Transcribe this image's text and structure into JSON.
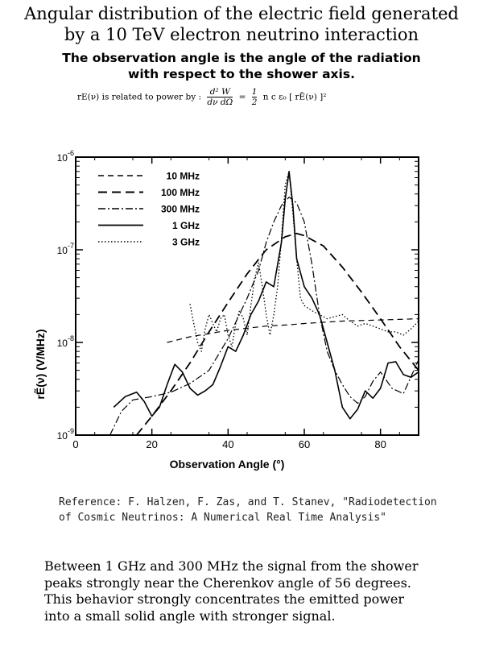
{
  "header": {
    "title_line1": "Angular distribution of the electric field generated",
    "title_line2": "by a 10 TeV electron neutrino interaction",
    "subtitle_line1": "The observation angle is the angle of the radiation",
    "subtitle_line2": "with respect to the shower axis."
  },
  "formula": {
    "lead": "rE(ν) is related to power by :",
    "numerator": "d² W",
    "denominator": "dν  dΩ",
    "equals": "=",
    "half_num": "1",
    "half_den": "2",
    "rhs": "n c ε₀ [ rĒ(ν) ]²"
  },
  "chart_data": {
    "type": "line",
    "xlabel": "Observation Angle  (°)",
    "ylabel": "rẼ(ν)   (V/MHz)",
    "xlim": [
      0,
      90
    ],
    "ylim": [
      1e-09,
      1e-06
    ],
    "yscale": "log",
    "grid": false,
    "legend_position": "top-left",
    "x_ticks": [
      {
        "value": 0,
        "label": "0"
      },
      {
        "value": 20,
        "label": "20"
      },
      {
        "value": 40,
        "label": "40"
      },
      {
        "value": 60,
        "label": "60"
      },
      {
        "value": 80,
        "label": "80"
      }
    ],
    "y_ticks": [
      {
        "value": 1e-09,
        "base": "10",
        "exp": "-9"
      },
      {
        "value": 1e-08,
        "base": "10",
        "exp": "-8"
      },
      {
        "value": 1e-07,
        "base": "10",
        "exp": "-7"
      },
      {
        "value": 1e-06,
        "base": "10",
        "exp": "-6"
      }
    ],
    "series": [
      {
        "name": "10 MHz",
        "dash": "7,5",
        "width": 1.2,
        "x": [
          24,
          30,
          40,
          50,
          56,
          60,
          70,
          80,
          90
        ],
        "y": [
          1e-08,
          1.15e-08,
          1.35e-08,
          1.5e-08,
          1.55e-08,
          1.6e-08,
          1.7e-08,
          1.75e-08,
          1.8e-08
        ]
      },
      {
        "name": "100 MHz",
        "dash": "11,6",
        "width": 1.8,
        "x": [
          16,
          20,
          25,
          30,
          35,
          40,
          45,
          50,
          55,
          58,
          60,
          65,
          70,
          75,
          80,
          85,
          90
        ],
        "y": [
          1e-09,
          1.6e-09,
          3e-09,
          6e-09,
          1.3e-08,
          2.7e-08,
          5.5e-08,
          1e-07,
          1.38e-07,
          1.5e-07,
          1.42e-07,
          1.1e-07,
          6.5e-08,
          3.5e-08,
          1.8e-08,
          9e-09,
          5e-09
        ]
      },
      {
        "name": "300 MHz",
        "dash": "9,3,2,3",
        "width": 1.2,
        "x": [
          9,
          12,
          15,
          20,
          25,
          30,
          35,
          40,
          45,
          48,
          50,
          52,
          54,
          56,
          58,
          60,
          62,
          64,
          66,
          68,
          70,
          72,
          74,
          76,
          78,
          80,
          83,
          86,
          90
        ],
        "y": [
          1e-09,
          1.8e-09,
          2.4e-09,
          2.6e-09,
          2.9e-09,
          3.6e-09,
          5e-09,
          1.1e-08,
          3e-08,
          6e-08,
          1.2e-07,
          2e-07,
          3e-07,
          3.7e-07,
          3.2e-07,
          2e-07,
          7e-08,
          2e-08,
          8e-09,
          5e-09,
          3.5e-09,
          2.6e-09,
          2.2e-09,
          2.6e-09,
          3.8e-09,
          4.8e-09,
          3.2e-09,
          2.8e-09,
          6.5e-09
        ]
      },
      {
        "name": "1 GHz",
        "dash": "",
        "width": 1.6,
        "x": [
          10,
          13,
          16,
          18,
          20,
          22,
          24,
          26,
          28,
          30,
          32,
          34,
          36,
          38,
          40,
          42,
          44,
          46,
          48,
          50,
          52,
          54,
          55,
          56,
          57,
          58,
          60,
          62,
          64,
          66,
          68,
          70,
          72,
          74,
          76,
          78,
          80,
          82,
          84,
          86,
          88,
          90
        ],
        "y": [
          2e-09,
          2.6e-09,
          2.9e-09,
          2.3e-09,
          1.6e-09,
          2e-09,
          3.5e-09,
          5.8e-09,
          4.8e-09,
          3.2e-09,
          2.7e-09,
          3e-09,
          3.5e-09,
          5.5e-09,
          9e-09,
          8e-09,
          1.2e-08,
          2e-08,
          2.8e-08,
          4.5e-08,
          4e-08,
          1.2e-07,
          3.5e-07,
          7e-07,
          3e-07,
          8e-08,
          4e-08,
          3e-08,
          2e-08,
          1e-08,
          5e-09,
          2e-09,
          1.5e-09,
          1.9e-09,
          3e-09,
          2.5e-09,
          3.2e-09,
          6e-09,
          6.2e-09,
          4.5e-09,
          4.2e-09,
          4.8e-09
        ]
      },
      {
        "name": "3 GHz",
        "dash": "1.5,2.5",
        "width": 1.3,
        "x": [
          30,
          31,
          32,
          33,
          34,
          35,
          36,
          37,
          38,
          39,
          40,
          41,
          42,
          43,
          44,
          45,
          46,
          47,
          48,
          49,
          50,
          51,
          52,
          53,
          54,
          55,
          56,
          57,
          58,
          59,
          60,
          62,
          64,
          66,
          68,
          70,
          72,
          74,
          76,
          78,
          80,
          82,
          84,
          86,
          88,
          90
        ],
        "y": [
          2.6e-08,
          1.6e-08,
          1e-08,
          8e-09,
          1.4e-08,
          2e-08,
          1.6e-08,
          1.3e-08,
          1.8e-08,
          2e-08,
          1.2e-08,
          9e-09,
          1.6e-08,
          2.2e-08,
          1.8e-08,
          1.2e-08,
          2.5e-08,
          5e-08,
          7.2e-08,
          4e-08,
          2e-08,
          1.2e-08,
          2e-08,
          4e-08,
          1.3e-07,
          5e-07,
          7e-07,
          2.5e-07,
          8e-08,
          3e-08,
          2.5e-08,
          2.2e-08,
          2e-08,
          1.8e-08,
          1.9e-08,
          2e-08,
          1.7e-08,
          1.5e-08,
          1.6e-08,
          1.5e-08,
          1.4e-08,
          1.3e-08,
          1.3e-08,
          1.2e-08,
          1.4e-08,
          1.7e-08
        ]
      }
    ]
  },
  "reference": {
    "line1": "Reference: F. Halzen, F. Zas, and T. Stanev, \"Radiodetection",
    "line2": "of Cosmic Neutrinos: A Numerical Real Time Analysis\""
  },
  "summary": {
    "line1": "Between 1 GHz and 300 MHz the signal from the shower",
    "line2": "peaks strongly near the Cherenkov angle of 56 degrees.",
    "line3": "This behavior strongly concentrates the emitted power",
    "line4": "into a small solid angle with stronger signal."
  }
}
